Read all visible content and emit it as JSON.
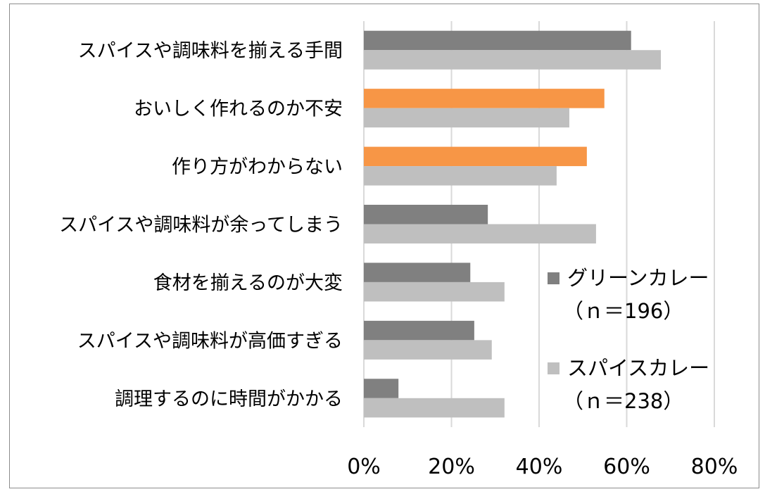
{
  "chart_data": {
    "type": "bar",
    "orientation": "horizontal",
    "categories": [
      "スパイスや調味料を揃える手間",
      "おいしく作れるのか不安",
      "作り方がわからない",
      "スパイスや調味料が余ってしまう",
      "食材を揃えるのが大変",
      "スパイスや調味料が高価すぎる",
      "調理するのに時間がかかる"
    ],
    "series": [
      {
        "name": "グリーンカレー",
        "sub": "（ｎ＝196）",
        "color": "#808080",
        "values": [
          61.0,
          54.9,
          50.9,
          28.3,
          24.3,
          25.2,
          7.9
        ],
        "highlight_color": "#f79646",
        "highlight_indices": [
          1,
          2
        ]
      },
      {
        "name": "スパイスカレー",
        "sub": "（ｎ＝238）",
        "color": "#bfbfbf",
        "values": [
          67.8,
          46.9,
          44.0,
          53.0,
          32.1,
          29.2,
          32.1
        ]
      }
    ],
    "xlim": [
      0,
      80
    ],
    "xticks": [
      0,
      20,
      40,
      60,
      80
    ],
    "xtick_labels": [
      "0%",
      "20%",
      "40%",
      "60%",
      "80%"
    ],
    "grid": "vertical",
    "legend": "right",
    "gridline_color": "#d9d9d9"
  }
}
